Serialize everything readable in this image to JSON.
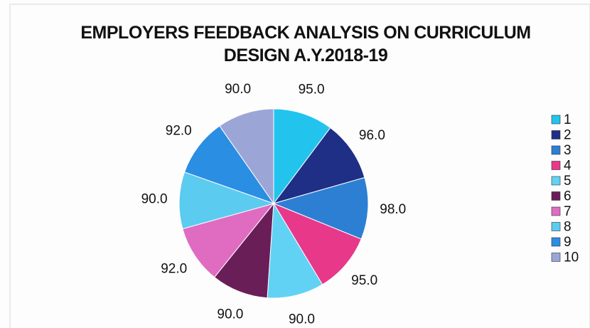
{
  "chart_data": {
    "type": "pie",
    "title": "EMPLOYERS FEEDBACK ANALYSIS ON CURRICULUM DESIGN A.Y.2018-19",
    "categories": [
      "1",
      "2",
      "3",
      "4",
      "5",
      "6",
      "7",
      "8",
      "9",
      "10"
    ],
    "values": [
      95,
      96,
      98,
      95,
      90,
      90,
      92,
      90,
      92,
      90
    ],
    "value_labels": [
      "95.0",
      "96.0",
      "98.0",
      "95.0",
      "90.0",
      "90.0",
      "92.0",
      "90.0",
      "92.0",
      "90.0"
    ],
    "colors": [
      "#22c4ee",
      "#1f2f86",
      "#2d7fd4",
      "#e8388a",
      "#62d2f4",
      "#6a1e58",
      "#e06cc2",
      "#5ccbf0",
      "#2a8ee2",
      "#9ca6d6"
    ],
    "legend": "right"
  }
}
